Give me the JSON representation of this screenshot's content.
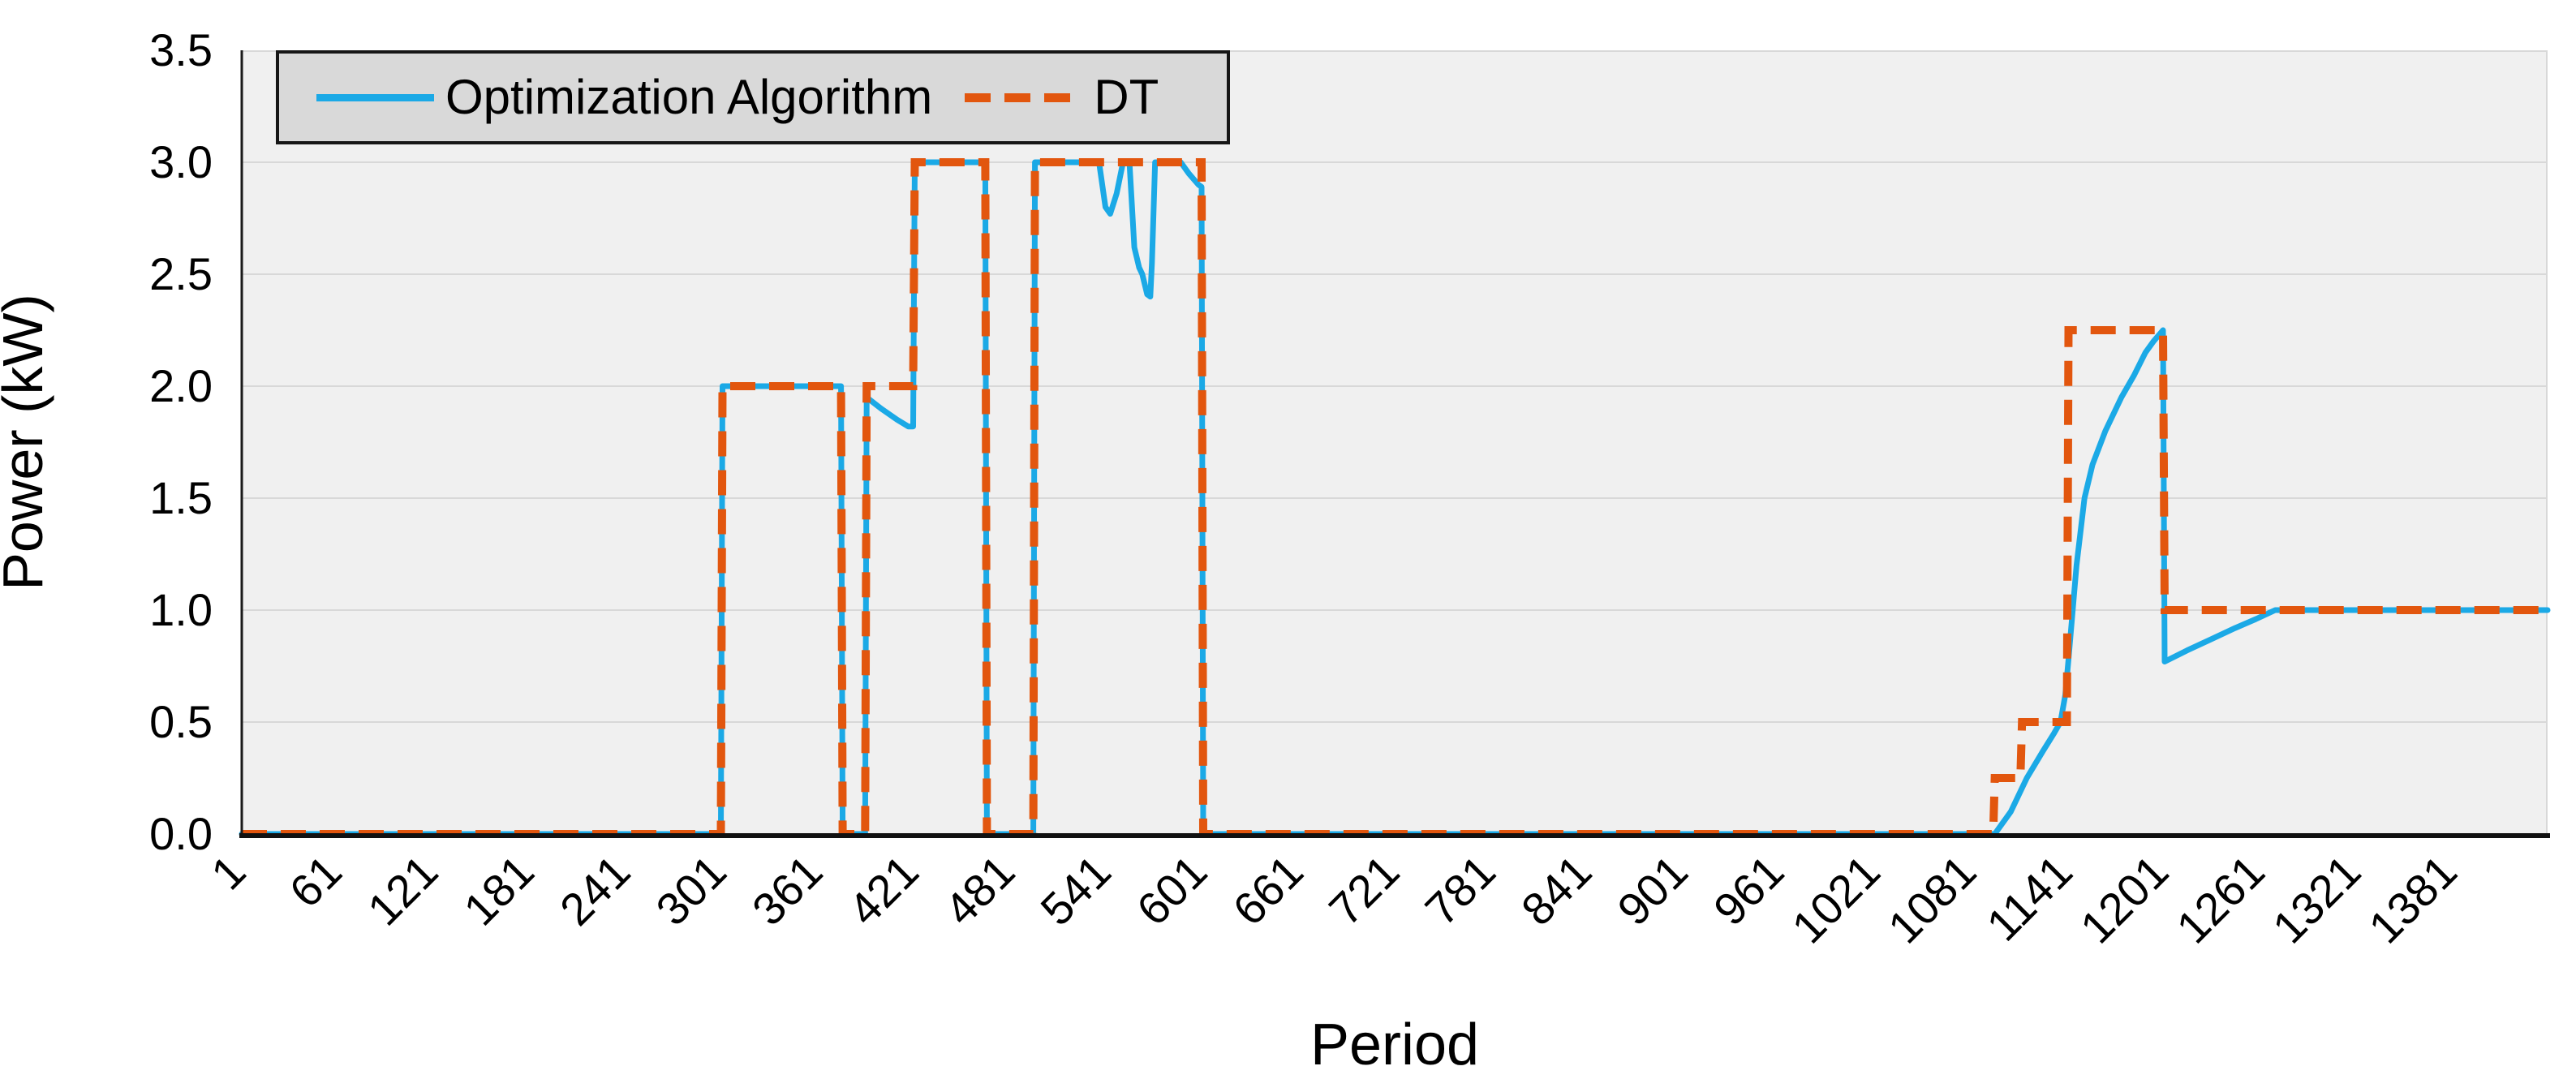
{
  "chart_data": {
    "type": "line",
    "title": "",
    "xlabel": "Period",
    "ylabel": "Power (kW)",
    "xlim": [
      1,
      1440
    ],
    "ylim": [
      0,
      3.5
    ],
    "x_ticks": [
      1,
      61,
      121,
      181,
      241,
      301,
      361,
      421,
      481,
      541,
      601,
      661,
      721,
      781,
      841,
      901,
      961,
      1021,
      1081,
      1141,
      1201,
      1261,
      1321,
      1381
    ],
    "y_ticks": [
      0.0,
      0.5,
      1.0,
      1.5,
      2.0,
      2.5,
      3.0,
      3.5
    ],
    "y_tick_decimals": 1,
    "grid": "horizontal-only",
    "legend_position": "top-left-inside",
    "plot_bg_color": "#F0F0F0",
    "grid_color": "#D8D8D8",
    "axis_color": "#111111",
    "series": [
      {
        "name": "Optimization Algorithm",
        "color": "#1BA9E6",
        "style": "solid",
        "points": [
          [
            1,
            0
          ],
          [
            300,
            0
          ],
          [
            301,
            2
          ],
          [
            375,
            2
          ],
          [
            376,
            0
          ],
          [
            390,
            0
          ],
          [
            391,
            1.95
          ],
          [
            400,
            1.9
          ],
          [
            410,
            1.85
          ],
          [
            417,
            1.82
          ],
          [
            420,
            1.82
          ],
          [
            421,
            3
          ],
          [
            465,
            3
          ],
          [
            466,
            0
          ],
          [
            495,
            0
          ],
          [
            496,
            3
          ],
          [
            536,
            3
          ],
          [
            540,
            2.8
          ],
          [
            543,
            2.77
          ],
          [
            547,
            2.86
          ],
          [
            551,
            3
          ],
          [
            555,
            3
          ],
          [
            558,
            2.62
          ],
          [
            561,
            2.53
          ],
          [
            563,
            2.5
          ],
          [
            566,
            2.41
          ],
          [
            568,
            2.4
          ],
          [
            569,
            2.55
          ],
          [
            571,
            3
          ],
          [
            587,
            3
          ],
          [
            592,
            2.95
          ],
          [
            598,
            2.9
          ],
          [
            600,
            2.89
          ],
          [
            601,
            0
          ],
          [
            1095,
            0
          ],
          [
            1105,
            0.1
          ],
          [
            1115,
            0.25
          ],
          [
            1125,
            0.37
          ],
          [
            1132,
            0.45
          ],
          [
            1136,
            0.5
          ],
          [
            1139,
            0.62
          ],
          [
            1141,
            0.78
          ],
          [
            1146,
            1.2
          ],
          [
            1151,
            1.5
          ],
          [
            1156,
            1.65
          ],
          [
            1164,
            1.8
          ],
          [
            1174,
            1.95
          ],
          [
            1182,
            2.05
          ],
          [
            1189,
            2.15
          ],
          [
            1194,
            2.2
          ],
          [
            1200,
            2.25
          ],
          [
            1201,
            0.77
          ],
          [
            1215,
            0.82
          ],
          [
            1230,
            0.87
          ],
          [
            1245,
            0.92
          ],
          [
            1258,
            0.96
          ],
          [
            1270,
            1
          ],
          [
            1440,
            1
          ]
        ]
      },
      {
        "name": "DT",
        "color": "#E2560E",
        "style": "dashed",
        "points": [
          [
            1,
            0
          ],
          [
            300,
            0
          ],
          [
            301,
            2
          ],
          [
            375,
            2
          ],
          [
            376,
            0
          ],
          [
            390,
            0
          ],
          [
            391,
            2
          ],
          [
            420,
            2
          ],
          [
            421,
            3
          ],
          [
            465,
            3
          ],
          [
            466,
            0
          ],
          [
            495,
            0
          ],
          [
            496,
            3
          ],
          [
            600,
            3
          ],
          [
            601,
            0
          ],
          [
            1094,
            0
          ],
          [
            1095,
            0.25
          ],
          [
            1111,
            0.25
          ],
          [
            1112,
            0.5
          ],
          [
            1140,
            0.5
          ],
          [
            1141,
            2.25
          ],
          [
            1200,
            2.25
          ],
          [
            1201,
            1
          ],
          [
            1440,
            1
          ]
        ]
      }
    ]
  },
  "legend": {
    "bg_color": "#D9D9D9",
    "border_color": "#161616",
    "items": [
      {
        "label": "Optimization Algorithm",
        "swatch": "solid-line-swatch"
      },
      {
        "label": "DT",
        "swatch": "dashed-line-swatch"
      }
    ]
  }
}
